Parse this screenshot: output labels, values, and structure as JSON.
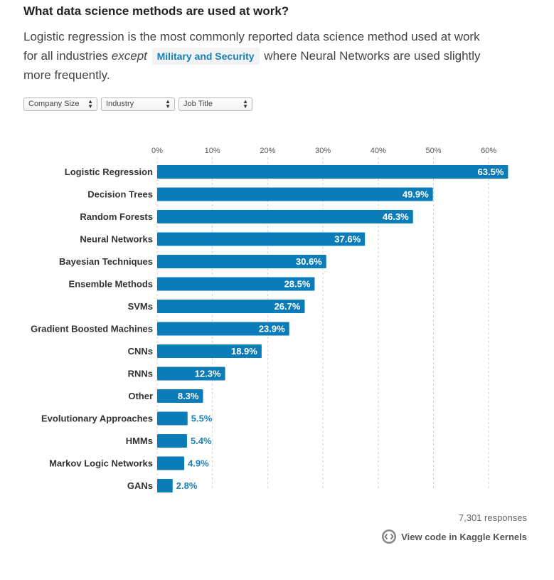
{
  "header": {
    "title": "What data science methods are used at work?",
    "subtitle_part1": "Logistic regression is the most commonly reported data science method used at work for all industries",
    "subtitle_except": "except",
    "highlight": "Military and Security",
    "subtitle_part2": "where Neural Networks are used slightly more frequently."
  },
  "filters": [
    {
      "label": "Company Size"
    },
    {
      "label": "Industry"
    },
    {
      "label": "Job Title"
    }
  ],
  "colors": {
    "bar": "#0b7cb8",
    "label_inside": "#ffffff",
    "label_outside": "#1a80b6",
    "grid": "#cfcfcf"
  },
  "chart_data": {
    "type": "bar",
    "orientation": "horizontal",
    "categories": [
      "Logistic Regression",
      "Decision Trees",
      "Random Forests",
      "Neural Networks",
      "Bayesian Techniques",
      "Ensemble Methods",
      "SVMs",
      "Gradient Boosted Machines",
      "CNNs",
      "RNNs",
      "Other",
      "Evolutionary Approaches",
      "HMMs",
      "Markov Logic Networks",
      "GANs"
    ],
    "values": [
      63.5,
      49.9,
      46.3,
      37.6,
      30.6,
      28.5,
      26.7,
      23.9,
      18.9,
      12.3,
      8.3,
      5.5,
      5.4,
      4.9,
      2.8
    ],
    "value_labels": [
      "63.5%",
      "49.9%",
      "46.3%",
      "37.6%",
      "30.6%",
      "28.5%",
      "26.7%",
      "23.9%",
      "18.9%",
      "12.3%",
      "8.3%",
      "5.5%",
      "5.4%",
      "4.9%",
      "2.8%"
    ],
    "x_ticks": [
      0,
      10,
      20,
      30,
      40,
      50,
      60
    ],
    "x_tick_labels": [
      "0%",
      "10%",
      "20%",
      "30%",
      "40%",
      "50%",
      "60%"
    ],
    "xlim": [
      0,
      65
    ],
    "grid": true,
    "axis_position": "top"
  },
  "footer": {
    "responses": "7,301 responses",
    "link_text": "View code in Kaggle Kernels",
    "link_icon": "kaggle-kernels-icon"
  }
}
